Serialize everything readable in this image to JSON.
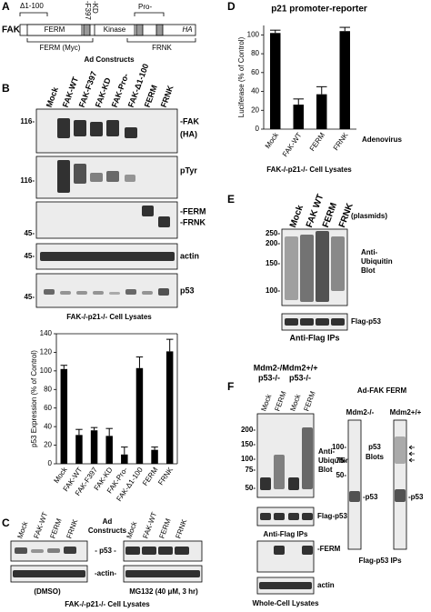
{
  "chart_data": [
    {
      "type": "bar",
      "ylabel": "p53 Expression (% of Control)",
      "categories": [
        "Mock",
        "FAK-WT",
        "FAK-F397",
        "FAK-KD",
        "FAK-Pro-",
        "FAK-Δ1-100",
        "FERM",
        "FRNK"
      ],
      "values": [
        102,
        31,
        36,
        30,
        10,
        103,
        15,
        121
      ],
      "errors": [
        4,
        6,
        3,
        8,
        8,
        12,
        3,
        13
      ],
      "color": "#000000",
      "ylim": [
        0,
        140
      ],
      "yticks": [
        0,
        20,
        40,
        60,
        80,
        100,
        120,
        140
      ]
    },
    {
      "type": "bar",
      "title": "p21 promoter-reporter",
      "ylabel": "Luciferase (% of Control)",
      "categories": [
        "Mock",
        "FAK-WT",
        "FERM",
        "FRNK"
      ],
      "values": [
        102,
        26,
        37,
        104
      ],
      "errors": [
        3,
        6,
        8,
        4
      ],
      "color": "#000000",
      "ylim": [
        0,
        110
      ],
      "yticks": [
        0,
        20,
        40,
        60,
        80,
        100
      ]
    }
  ],
  "panel_a": {
    "letter": "A",
    "protein": "FAK",
    "delta": "Δ1-100",
    "f397": "-F397",
    "kd": "-KD",
    "pro": "Pro-",
    "ferm": "FERM",
    "kinase": "Kinase",
    "ha": "HA",
    "ferm_myc": "FERM (Myc)",
    "frnk": "FRNK",
    "caption": "Ad Constructs"
  },
  "panel_b": {
    "letter": "B",
    "lanes": [
      "Mock",
      "FAK-WT",
      "FAK-F397",
      "FAK-KD",
      "FAK-Pro-",
      "FAK-Δ1-100",
      "FERM",
      "FRNK"
    ],
    "blots": [
      {
        "markers": [
          "116-"
        ],
        "labels": [
          "-FAK",
          "(HA)"
        ]
      },
      {
        "markers": [
          "116-"
        ],
        "labels": [
          "pTyr"
        ]
      },
      {
        "markers": [
          "45-"
        ],
        "labels": [
          "-FERM",
          "-FRNK"
        ]
      },
      {
        "markers": [
          "45-"
        ],
        "labels": [
          "actin"
        ]
      },
      {
        "markers": [
          "45-"
        ],
        "labels": [
          "p53"
        ]
      }
    ],
    "caption": "FAK-/-p21-/- Cell Lysates"
  },
  "panel_c": {
    "letter": "C",
    "lanes_left": [
      "Mock",
      "FAK-WT",
      "FERM",
      "FRNK"
    ],
    "lanes_right": [
      "Mock",
      "FAK-WT",
      "FERM",
      "FRNK"
    ],
    "header": [
      "Ad",
      "Constructs"
    ],
    "p53": "- p53 -",
    "actin": "-actin-",
    "left_condition": "(DMSO)",
    "right_condition": "MG132 (40 μM, 3 hr)",
    "caption": "FAK-/-p21-/- Cell Lysates"
  },
  "panel_d": {
    "letter": "D",
    "treatment": "Adenovirus",
    "caption": "FAK-/-p21-/- Cell Lysates"
  },
  "panel_e": {
    "letter": "E",
    "lanes": [
      "Mock",
      "FAK WT",
      "FERM",
      "FRNK"
    ],
    "lane_note": "(plasmids)",
    "markers": [
      "250-",
      "200-",
      "150-",
      "100-"
    ],
    "blot_label": [
      "Anti-",
      "Ubiquitin",
      "Blot"
    ],
    "flag_label": "Flag-p53",
    "caption": "Anti-Flag IPs"
  },
  "panel_f": {
    "letter": "F",
    "groups": [
      [
        "Mdm2-/-",
        "p53-/-"
      ],
      [
        "Mdm2+/+",
        "p53-/-"
      ]
    ],
    "lanes": [
      "Mock",
      "FERM",
      "Mock",
      "FERM"
    ],
    "markers": [
      "200-",
      "150-",
      "100-",
      "75-",
      "50-"
    ],
    "blot_label": [
      "Anti-",
      "Ubiquitin",
      "Blot"
    ],
    "flag_label": "Flag-p53",
    "ip_caption": "Anti-Flag IPs",
    "ferm_label": "-FERM",
    "actin_label": "actin",
    "lysate_caption": "Whole-Cell Lysates",
    "side": {
      "title": "Ad-FAK FERM",
      "lanes": [
        "Mdm2-/-",
        "Mdm2+/+"
      ],
      "markers": [
        "100-",
        "75-",
        "50-"
      ],
      "blot_label": [
        "p53",
        "Blots"
      ],
      "p53_labels": [
        "-p53",
        "-p53"
      ],
      "caption": "Flag-p53 IPs"
    }
  }
}
